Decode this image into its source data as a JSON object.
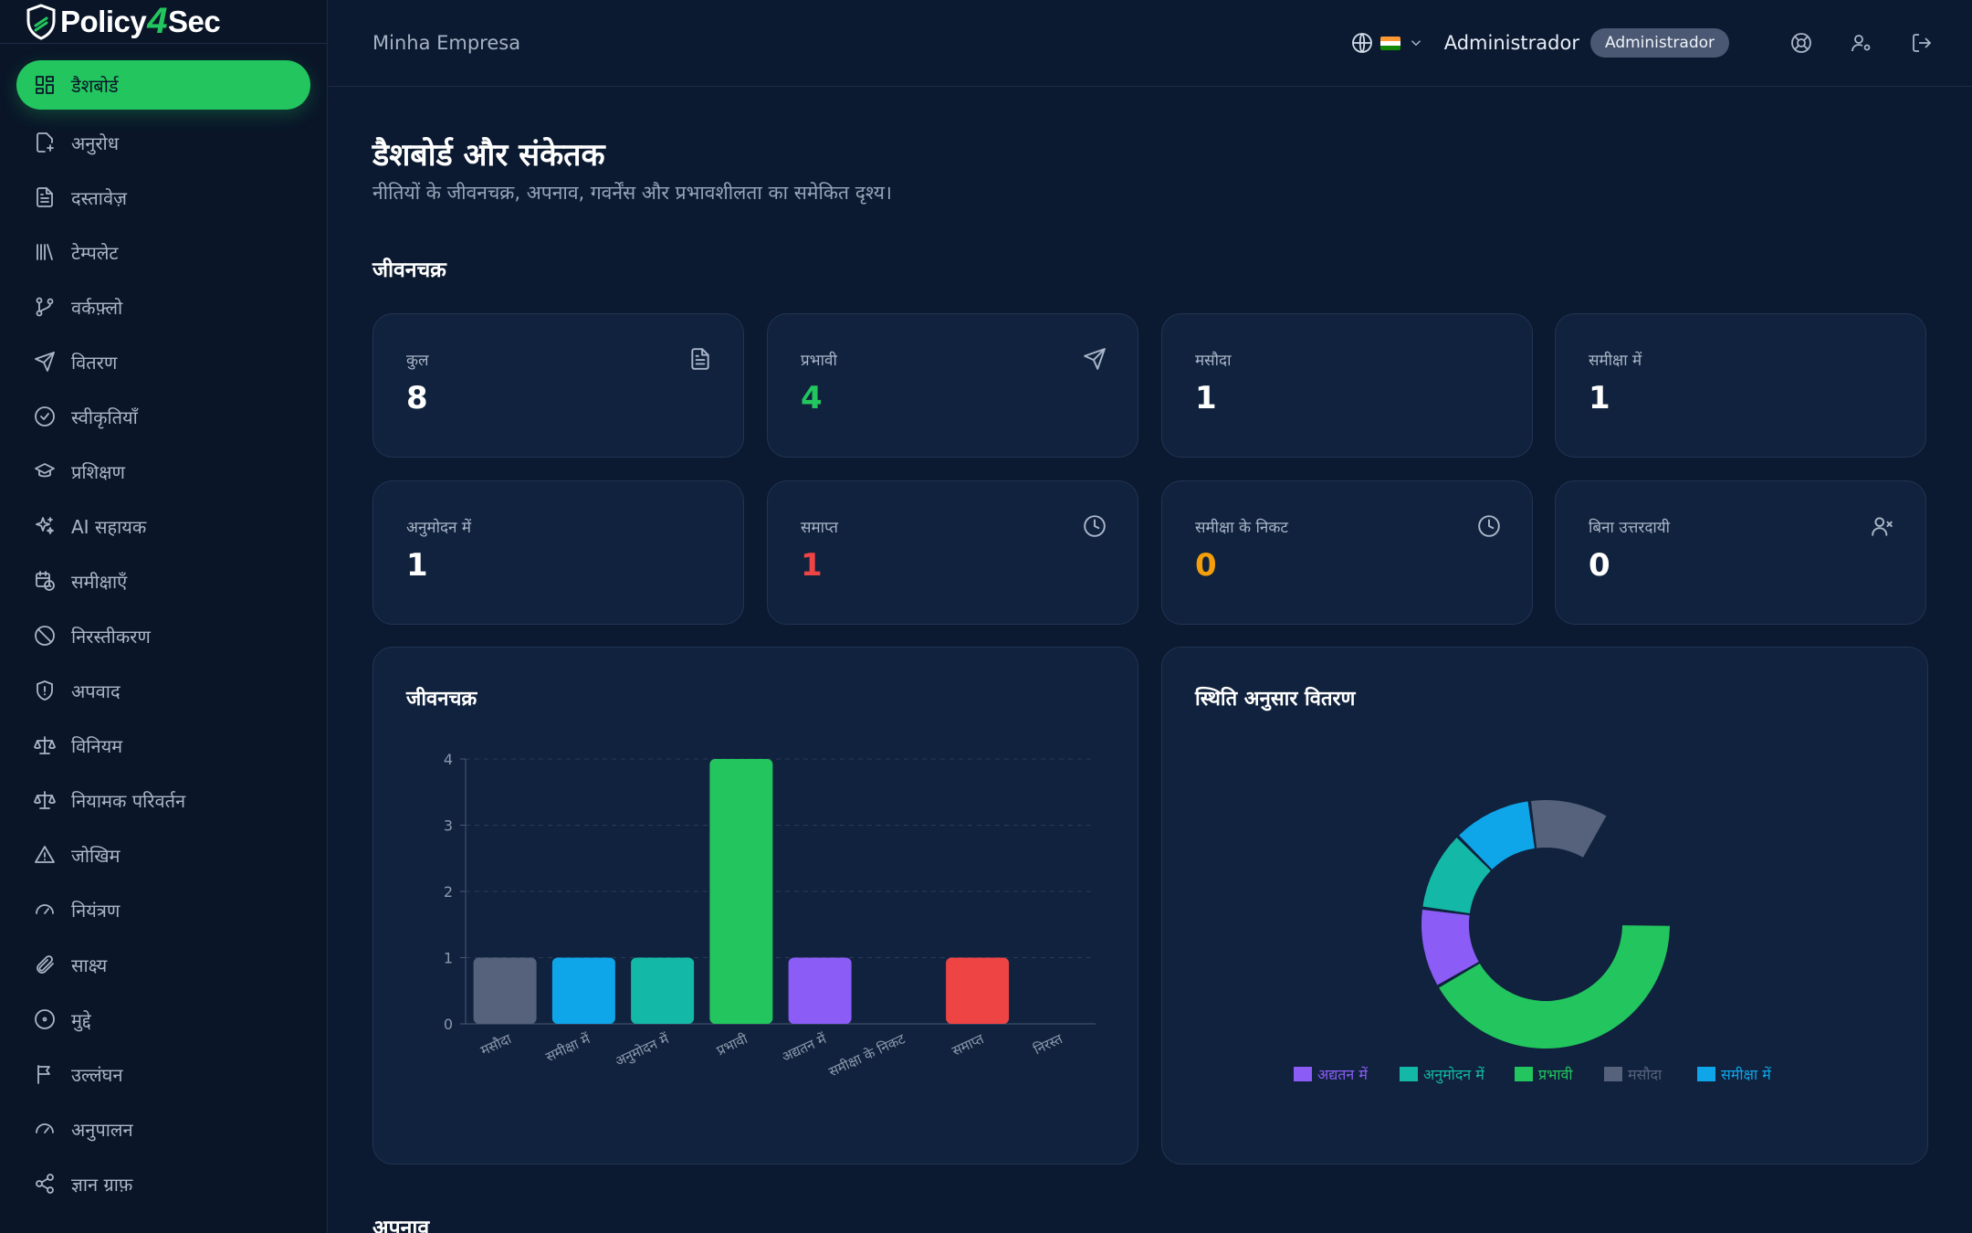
{
  "app": {
    "logo": {
      "part1": "Policy",
      "part2": "4",
      "part3": "Sec"
    }
  },
  "sidebar": {
    "items": [
      {
        "label": "डैशबोर्ड",
        "icon": "dashboard-icon",
        "active": true
      },
      {
        "label": "अनुरोध",
        "icon": "file-plus-icon"
      },
      {
        "label": "दस्तावेज़",
        "icon": "document-icon"
      },
      {
        "label": "टेम्पलेट",
        "icon": "library-icon"
      },
      {
        "label": "वर्कफ़्लो",
        "icon": "git-branch-icon"
      },
      {
        "label": "वितरण",
        "icon": "send-icon"
      },
      {
        "label": "स्वीकृतियाँ",
        "icon": "check-circle-icon"
      },
      {
        "label": "प्रशिक्षण",
        "icon": "graduation-cap-icon"
      },
      {
        "label": "AI सहायक",
        "icon": "sparkles-icon"
      },
      {
        "label": "समीक्षाएँ",
        "icon": "calendar-clock-icon"
      },
      {
        "label": "निरस्तीकरण",
        "icon": "ban-icon"
      },
      {
        "label": "अपवाद",
        "icon": "shield-alert-icon"
      },
      {
        "label": "विनियम",
        "icon": "scale-icon"
      },
      {
        "label": "नियामक परिवर्तन",
        "icon": "scale-icon"
      },
      {
        "label": "जोखिम",
        "icon": "warning-triangle-icon"
      },
      {
        "label": "नियंत्रण",
        "icon": "gauge-icon"
      },
      {
        "label": "साक्ष्य",
        "icon": "paperclip-icon"
      },
      {
        "label": "मुद्दे",
        "icon": "circle-dot-icon"
      },
      {
        "label": "उल्लंघन",
        "icon": "flag-icon"
      },
      {
        "label": "अनुपालन",
        "icon": "gauge-icon"
      },
      {
        "label": "ज्ञान ग्राफ़",
        "icon": "share-graph-icon"
      }
    ]
  },
  "header": {
    "company": "Minha Empresa",
    "user_name": "Administrador",
    "role_badge": "Administrador",
    "icons": [
      "globe-icon",
      "india-flag-icon",
      "chevron-down-icon",
      "help-lifebuoy-icon",
      "user-settings-icon",
      "logout-icon"
    ]
  },
  "page": {
    "title": "डैशबोर्ड और संकेतक",
    "subtitle": "नीतियों के जीवनचक्र, अपनाव, गवर्नेंस और प्रभावशीलता का समेकित दृश्य।"
  },
  "sections": {
    "lifecycle": "जीवनचक्र",
    "adoption": "अपनाव"
  },
  "stats": [
    {
      "label": "कुल",
      "value": "8",
      "color": "#ffffff",
      "icon": "document-icon"
    },
    {
      "label": "प्रभावी",
      "value": "4",
      "color": "#22c55e",
      "icon": "send-icon"
    },
    {
      "label": "मसौदा",
      "value": "1",
      "color": "#ffffff",
      "icon": ""
    },
    {
      "label": "समीक्षा में",
      "value": "1",
      "color": "#ffffff",
      "icon": ""
    },
    {
      "label": "अनुमोदन में",
      "value": "1",
      "color": "#ffffff",
      "icon": ""
    },
    {
      "label": "समाप्त",
      "value": "1",
      "color": "#ef4444",
      "icon": "clock-icon"
    },
    {
      "label": "समीक्षा के निकट",
      "value": "0",
      "color": "#f59e0b",
      "icon": "clock-icon"
    },
    {
      "label": "बिना उत्तरदायी",
      "value": "0",
      "color": "#ffffff",
      "icon": "user-x-icon"
    }
  ],
  "chart_data": [
    {
      "type": "bar",
      "title": "जीवनचक्र",
      "categories": [
        "मसौदा",
        "समीक्षा में",
        "अनुमोदन में",
        "प्रभावी",
        "अद्यतन में",
        "समीक्षा के निकट",
        "समाप्त",
        "निरस्त"
      ],
      "values": [
        1,
        1,
        1,
        4,
        1,
        0,
        1,
        0
      ],
      "colors": [
        "#56627c",
        "#0ea5e9",
        "#14b8a6",
        "#22c55e",
        "#8b5cf6",
        "#f59e0b",
        "#ef4444",
        "#64748b"
      ],
      "yticks": [
        "0",
        "1",
        "2",
        "3",
        "4"
      ],
      "ylim": [
        0,
        4
      ],
      "grid": true
    },
    {
      "type": "pie",
      "title": "स्थिति अनुसार वितरण",
      "labels": [
        "अद्यतन में",
        "अनुमोदन में",
        "प्रभावी",
        "मसौदा",
        "समीक्षा में"
      ],
      "values": [
        1,
        1,
        4,
        1,
        1
      ],
      "colors": [
        "#8b5cf6",
        "#14b8a6",
        "#22c55e",
        "#56627c",
        "#0ea5e9"
      ],
      "legend_position": "bottom"
    }
  ]
}
